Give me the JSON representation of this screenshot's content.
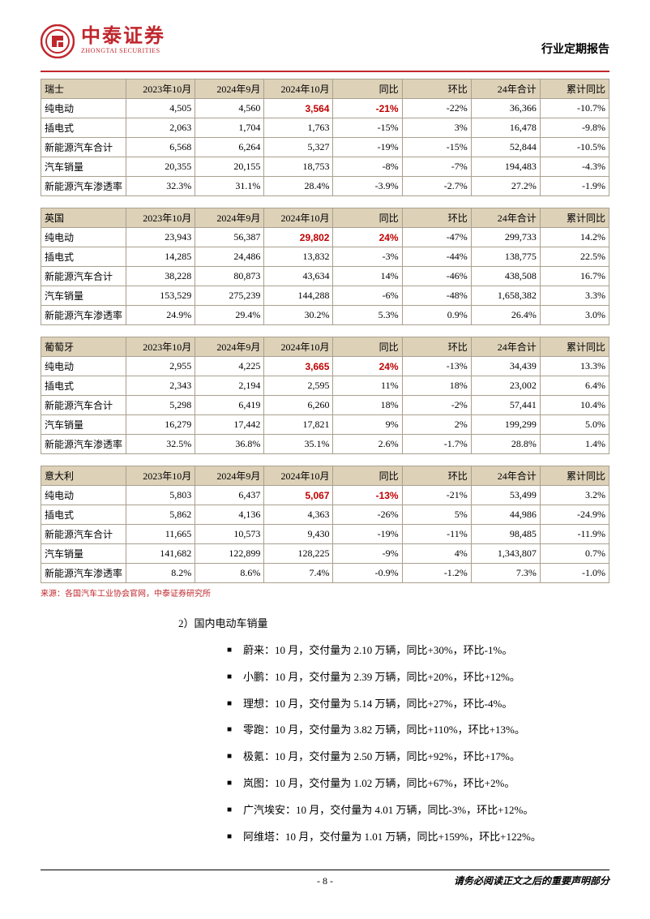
{
  "header": {
    "logo_cn": "中泰证券",
    "logo_en": "ZHONGTAI SECURITIES",
    "report_type": "行业定期报告",
    "logo_color": "#c0272d"
  },
  "table_columns": [
    "2023年10月",
    "2024年9月",
    "2024年10月",
    "同比",
    "环比",
    "24年合计",
    "累计同比"
  ],
  "table_row_labels": [
    "纯电动",
    "插电式",
    "新能源汽车合计",
    "汽车销量",
    "新能源汽车渗透率"
  ],
  "tables": [
    {
      "country": "瑞士",
      "rows": [
        {
          "c": [
            "4,505",
            "4,560",
            "3,564",
            "-21%",
            "-22%",
            "36,366",
            "-10.7%"
          ],
          "hl": [
            2,
            3
          ]
        },
        {
          "c": [
            "2,063",
            "1,704",
            "1,763",
            "-15%",
            "3%",
            "16,478",
            "-9.8%"
          ],
          "hl": []
        },
        {
          "c": [
            "6,568",
            "6,264",
            "5,327",
            "-19%",
            "-15%",
            "52,844",
            "-10.5%"
          ],
          "hl": []
        },
        {
          "c": [
            "20,355",
            "20,155",
            "18,753",
            "-8%",
            "-7%",
            "194,483",
            "-4.3%"
          ],
          "hl": []
        },
        {
          "c": [
            "32.3%",
            "31.1%",
            "28.4%",
            "-3.9%",
            "-2.7%",
            "27.2%",
            "-1.9%"
          ],
          "hl": []
        }
      ]
    },
    {
      "country": "英国",
      "rows": [
        {
          "c": [
            "23,943",
            "56,387",
            "29,802",
            "24%",
            "-47%",
            "299,733",
            "14.2%"
          ],
          "hl": [
            2,
            3
          ]
        },
        {
          "c": [
            "14,285",
            "24,486",
            "13,832",
            "-3%",
            "-44%",
            "138,775",
            "22.5%"
          ],
          "hl": []
        },
        {
          "c": [
            "38,228",
            "80,873",
            "43,634",
            "14%",
            "-46%",
            "438,508",
            "16.7%"
          ],
          "hl": []
        },
        {
          "c": [
            "153,529",
            "275,239",
            "144,288",
            "-6%",
            "-48%",
            "1,658,382",
            "3.3%"
          ],
          "hl": []
        },
        {
          "c": [
            "24.9%",
            "29.4%",
            "30.2%",
            "5.3%",
            "0.9%",
            "26.4%",
            "3.0%"
          ],
          "hl": []
        }
      ]
    },
    {
      "country": "葡萄牙",
      "rows": [
        {
          "c": [
            "2,955",
            "4,225",
            "3,665",
            "24%",
            "-13%",
            "34,439",
            "13.3%"
          ],
          "hl": [
            2,
            3
          ]
        },
        {
          "c": [
            "2,343",
            "2,194",
            "2,595",
            "11%",
            "18%",
            "23,002",
            "6.4%"
          ],
          "hl": []
        },
        {
          "c": [
            "5,298",
            "6,419",
            "6,260",
            "18%",
            "-2%",
            "57,441",
            "10.4%"
          ],
          "hl": []
        },
        {
          "c": [
            "16,279",
            "17,442",
            "17,821",
            "9%",
            "2%",
            "199,299",
            "5.0%"
          ],
          "hl": []
        },
        {
          "c": [
            "32.5%",
            "36.8%",
            "35.1%",
            "2.6%",
            "-1.7%",
            "28.8%",
            "1.4%"
          ],
          "hl": []
        }
      ]
    },
    {
      "country": "意大利",
      "rows": [
        {
          "c": [
            "5,803",
            "6,437",
            "5,067",
            "-13%",
            "-21%",
            "53,499",
            "3.2%"
          ],
          "hl": [
            2,
            3
          ]
        },
        {
          "c": [
            "5,862",
            "4,136",
            "4,363",
            "-26%",
            "5%",
            "44,986",
            "-24.9%"
          ],
          "hl": []
        },
        {
          "c": [
            "11,665",
            "10,573",
            "9,430",
            "-19%",
            "-11%",
            "98,485",
            "-11.9%"
          ],
          "hl": []
        },
        {
          "c": [
            "141,682",
            "122,899",
            "128,225",
            "-9%",
            "4%",
            "1,343,807",
            "0.7%"
          ],
          "hl": []
        },
        {
          "c": [
            "8.2%",
            "8.6%",
            "7.4%",
            "-0.9%",
            "-1.2%",
            "7.3%",
            "-1.0%"
          ],
          "hl": []
        }
      ]
    }
  ],
  "source_note": "来源：各国汽车工业协会官网，中泰证券研究所",
  "section_title": "2）国内电动车销量",
  "bullets": [
    "蔚来：10 月，交付量为 2.10 万辆，同比+30%，环比-1%。",
    "小鹏：10 月，交付量为 2.39 万辆，同比+20%，环比+12%。",
    "理想：10 月，交付量为 5.14 万辆，同比+27%，环比-4%。",
    "零跑：10 月，交付量为 3.82 万辆，同比+110%，环比+13%。",
    "极氪：10 月，交付量为 2.50 万辆，同比+92%，环比+17%。",
    "岚图：10 月，交付量为 1.02 万辆，同比+67%，环比+2%。",
    "广汽埃安：10 月，交付量为 4.01 万辆，同比-3%，环比+12%。",
    "阿维塔：10 月，交付量为 1.01 万辆，同比+159%，环比+122%。"
  ],
  "footer": {
    "page": "- 8 -",
    "disclaimer": "请务必阅读正文之后的重要声明部分"
  },
  "styles": {
    "header_bg": "#ddd1b8",
    "border_color": "#a9a08f",
    "highlight_color": "#c00000",
    "text_color": "#000000",
    "font_size_table": 12,
    "font_size_body": 13
  }
}
